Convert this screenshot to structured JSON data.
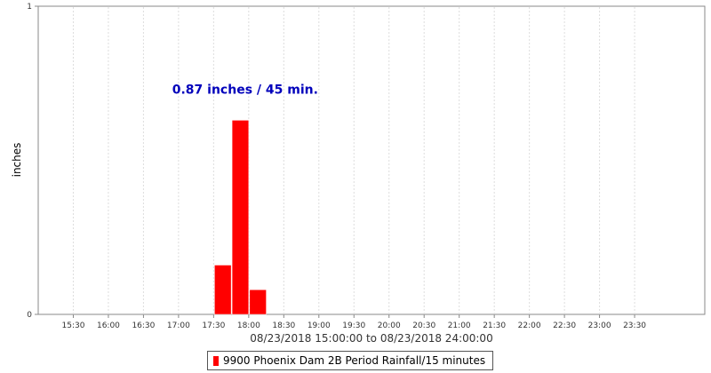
{
  "chart_data": {
    "type": "bar",
    "ylabel": "inches",
    "xlabel": "08/23/2018 15:00:00 to 08/23/2018 24:00:00",
    "ylim": [
      0,
      1
    ],
    "y_ticks": [
      "0",
      "1"
    ],
    "x_range_hours": [
      15.0,
      24.5
    ],
    "x_ticks": [
      {
        "h": 15.5,
        "label": "15:30"
      },
      {
        "h": 16.0,
        "label": "16:00"
      },
      {
        "h": 16.5,
        "label": "16:30"
      },
      {
        "h": 17.0,
        "label": "17:00"
      },
      {
        "h": 17.5,
        "label": "17:30"
      },
      {
        "h": 18.0,
        "label": "18:00"
      },
      {
        "h": 18.5,
        "label": "18:30"
      },
      {
        "h": 19.0,
        "label": "19:00"
      },
      {
        "h": 19.5,
        "label": "19:30"
      },
      {
        "h": 20.0,
        "label": "20:00"
      },
      {
        "h": 20.5,
        "label": "20:30"
      },
      {
        "h": 21.0,
        "label": "21:00"
      },
      {
        "h": 21.5,
        "label": "21:30"
      },
      {
        "h": 22.0,
        "label": "22:00"
      },
      {
        "h": 22.5,
        "label": "22:30"
      },
      {
        "h": 23.0,
        "label": "23:00"
      },
      {
        "h": 23.5,
        "label": "23:30"
      }
    ],
    "grid": true,
    "legend_position": "bottom-center",
    "series": [
      {
        "name": "9900 Phoenix Dam 2B Period Rainfall/15 minutes",
        "color": "#ff0000",
        "bars": [
          {
            "start": 17.5,
            "end": 17.75,
            "value": 0.16
          },
          {
            "start": 17.75,
            "end": 18.0,
            "value": 0.63
          },
          {
            "start": 18.0,
            "end": 18.25,
            "value": 0.08
          }
        ]
      }
    ],
    "annotation": {
      "text": "0.87 inches / 45 min.",
      "color": "#0000bb",
      "anchor_hour": 18.0,
      "anchor_value": 0.73
    }
  }
}
